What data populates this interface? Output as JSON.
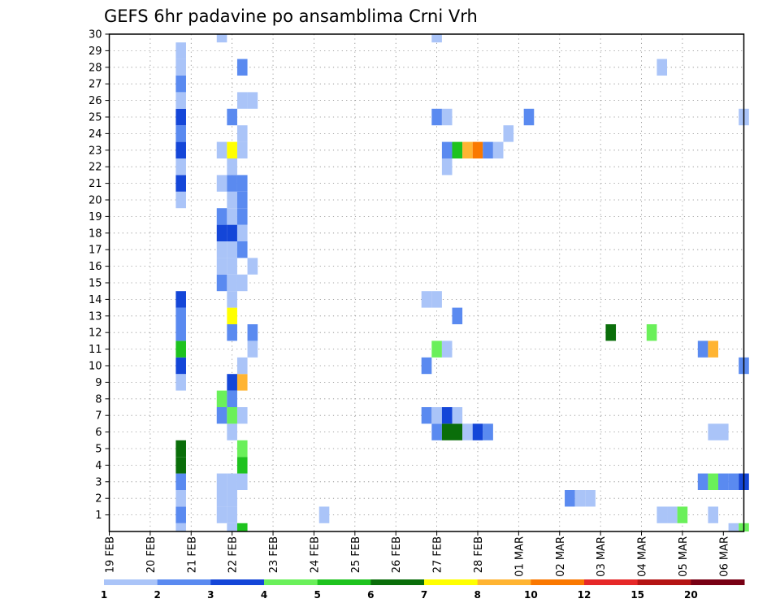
{
  "chart_data": {
    "type": "heatmap",
    "title": "GEFS 6hr padavine po ansamblima Crni Vrh",
    "x_tick_labels": [
      "19 FEB",
      "20 FEB",
      "21 FEB",
      "22 FEB",
      "23 FEB",
      "24 FEB",
      "25 FEB",
      "26 FEB",
      "27 FEB",
      "28 FEB",
      "01 MAR",
      "02 MAR",
      "03 MAR",
      "04 MAR",
      "05 MAR",
      "06 MAR"
    ],
    "y_tick_labels": [
      "1",
      "2",
      "3",
      "4",
      "5",
      "6",
      "7",
      "8",
      "9",
      "10",
      "11",
      "12",
      "13",
      "14",
      "15",
      "16",
      "17",
      "18",
      "19",
      "20",
      "21",
      "22",
      "23",
      "24",
      "25",
      "26",
      "27",
      "28",
      "29",
      "30"
    ],
    "x_range_days": [
      0,
      15.5
    ],
    "y_range": [
      0,
      30
    ],
    "grid": true,
    "legend": {
      "placement": "bottom",
      "thresholds": [
        "1",
        "2",
        "3",
        "4",
        "5",
        "6",
        "7",
        "8",
        "10",
        "12",
        "15",
        "20"
      ],
      "colors": [
        "#aac4f8",
        "#5a8af0",
        "#1446d8",
        "#6af05a",
        "#1ec31e",
        "#0a6e0a",
        "#ffff00",
        "#ffb432",
        "#fa7800",
        "#e62828",
        "#b41414",
        "#780014"
      ]
    },
    "cells": [
      [
        1.75,
        0,
        "c1"
      ],
      [
        1.75,
        1,
        "c2"
      ],
      [
        1.75,
        2,
        "c1"
      ],
      [
        1.75,
        3,
        "c2"
      ],
      [
        1.75,
        4,
        "c6"
      ],
      [
        1.75,
        5,
        "c6"
      ],
      [
        1.75,
        9,
        "c1"
      ],
      [
        1.75,
        10,
        "c3"
      ],
      [
        1.75,
        11,
        "c5"
      ],
      [
        1.75,
        12,
        "c2"
      ],
      [
        1.75,
        13,
        "c2"
      ],
      [
        1.75,
        14,
        "c3"
      ],
      [
        1.75,
        20,
        "c1"
      ],
      [
        1.75,
        21,
        "c3"
      ],
      [
        1.75,
        22,
        "c1"
      ],
      [
        1.75,
        23,
        "c3"
      ],
      [
        1.75,
        24,
        "c2"
      ],
      [
        1.75,
        25,
        "c3"
      ],
      [
        1.75,
        26,
        "c1"
      ],
      [
        1.75,
        27,
        "c2"
      ],
      [
        1.75,
        28,
        "c1"
      ],
      [
        1.75,
        29,
        "c1"
      ],
      [
        2.75,
        1,
        "c1"
      ],
      [
        2.75,
        2,
        "c1"
      ],
      [
        2.75,
        3,
        "c1"
      ],
      [
        2.75,
        7,
        "c2"
      ],
      [
        2.75,
        8,
        "c4"
      ],
      [
        2.75,
        15,
        "c2"
      ],
      [
        2.75,
        16,
        "c1"
      ],
      [
        2.75,
        17,
        "c1"
      ],
      [
        2.75,
        18,
        "c3"
      ],
      [
        2.75,
        19,
        "c2"
      ],
      [
        2.75,
        21,
        "c1"
      ],
      [
        2.75,
        23,
        "c1"
      ],
      [
        2.75,
        30,
        "c1"
      ],
      [
        3.0,
        0,
        "c1"
      ],
      [
        3.0,
        1,
        "c1"
      ],
      [
        3.0,
        2,
        "c1"
      ],
      [
        3.0,
        3,
        "c1"
      ],
      [
        3.0,
        6,
        "c1"
      ],
      [
        3.0,
        7,
        "c4"
      ],
      [
        3.0,
        8,
        "c2"
      ],
      [
        3.0,
        9,
        "c3"
      ],
      [
        3.0,
        12,
        "c2"
      ],
      [
        3.0,
        13,
        "c7"
      ],
      [
        3.0,
        14,
        "c1"
      ],
      [
        3.0,
        15,
        "c1"
      ],
      [
        3.0,
        16,
        "c1"
      ],
      [
        3.0,
        17,
        "c1"
      ],
      [
        3.0,
        18,
        "c3"
      ],
      [
        3.0,
        19,
        "c1"
      ],
      [
        3.0,
        20,
        "c1"
      ],
      [
        3.0,
        21,
        "c2"
      ],
      [
        3.0,
        22,
        "c1"
      ],
      [
        3.0,
        23,
        "c7"
      ],
      [
        3.0,
        25,
        "c2"
      ],
      [
        3.25,
        0,
        "c5"
      ],
      [
        3.25,
        3,
        "c1"
      ],
      [
        3.25,
        4,
        "c5"
      ],
      [
        3.25,
        5,
        "c4"
      ],
      [
        3.25,
        7,
        "c1"
      ],
      [
        3.25,
        9,
        "c8"
      ],
      [
        3.25,
        10,
        "c1"
      ],
      [
        3.25,
        15,
        "c1"
      ],
      [
        3.25,
        17,
        "c2"
      ],
      [
        3.25,
        18,
        "c1"
      ],
      [
        3.25,
        19,
        "c2"
      ],
      [
        3.25,
        20,
        "c2"
      ],
      [
        3.25,
        21,
        "c2"
      ],
      [
        3.25,
        23,
        "c1"
      ],
      [
        3.25,
        24,
        "c1"
      ],
      [
        3.25,
        26,
        "c1"
      ],
      [
        3.25,
        28,
        "c2"
      ],
      [
        3.5,
        11,
        "c1"
      ],
      [
        3.5,
        12,
        "c2"
      ],
      [
        3.5,
        16,
        "c1"
      ],
      [
        3.5,
        26,
        "c1"
      ],
      [
        5.25,
        1,
        "c1"
      ],
      [
        7.75,
        7,
        "c2"
      ],
      [
        7.75,
        10,
        "c2"
      ],
      [
        7.75,
        14,
        "c1"
      ],
      [
        8.0,
        6,
        "c2"
      ],
      [
        8.0,
        7,
        "c1"
      ],
      [
        8.0,
        11,
        "c4"
      ],
      [
        8.0,
        14,
        "c1"
      ],
      [
        8.0,
        25,
        "c2"
      ],
      [
        8.0,
        30,
        "c1"
      ],
      [
        8.25,
        6,
        "c6"
      ],
      [
        8.25,
        7,
        "c3"
      ],
      [
        8.25,
        11,
        "c1"
      ],
      [
        8.25,
        22,
        "c1"
      ],
      [
        8.25,
        23,
        "c2"
      ],
      [
        8.25,
        25,
        "c1"
      ],
      [
        8.5,
        6,
        "c6"
      ],
      [
        8.5,
        7,
        "c1"
      ],
      [
        8.5,
        13,
        "c2"
      ],
      [
        8.5,
        23,
        "c5"
      ],
      [
        8.75,
        6,
        "c1"
      ],
      [
        8.75,
        23,
        "c8"
      ],
      [
        9.0,
        6,
        "c3"
      ],
      [
        9.0,
        23,
        "c9"
      ],
      [
        9.25,
        6,
        "c2"
      ],
      [
        9.25,
        23,
        "c2"
      ],
      [
        9.5,
        23,
        "c1"
      ],
      [
        9.75,
        24,
        "c1"
      ],
      [
        10.25,
        25,
        "c2"
      ],
      [
        11.25,
        2,
        "c2"
      ],
      [
        11.5,
        2,
        "c1"
      ],
      [
        11.75,
        2,
        "c1"
      ],
      [
        12.25,
        12,
        "c6"
      ],
      [
        13.25,
        12,
        "c4"
      ],
      [
        13.5,
        1,
        "c1"
      ],
      [
        13.5,
        28,
        "c1"
      ],
      [
        13.75,
        1,
        "c1"
      ],
      [
        14.0,
        1,
        "c4"
      ],
      [
        14.5,
        3,
        "c2"
      ],
      [
        14.5,
        11,
        "c2"
      ],
      [
        14.75,
        1,
        "c1"
      ],
      [
        14.75,
        3,
        "c4"
      ],
      [
        14.75,
        6,
        "c1"
      ],
      [
        14.75,
        11,
        "c8"
      ],
      [
        15.0,
        3,
        "c2"
      ],
      [
        15.0,
        6,
        "c1"
      ],
      [
        15.25,
        0,
        "c1"
      ],
      [
        15.25,
        3,
        "c2"
      ],
      [
        15.5,
        0,
        "c4"
      ],
      [
        15.5,
        3,
        "c3"
      ],
      [
        15.5,
        10,
        "c2"
      ],
      [
        15.5,
        25,
        "c1"
      ]
    ]
  }
}
